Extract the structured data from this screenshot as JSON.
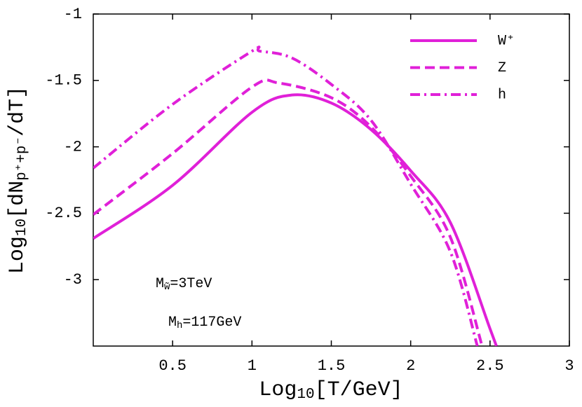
{
  "chart_data": {
    "type": "line",
    "xlabel_parts": [
      "Log",
      "10",
      "[T/GeV]"
    ],
    "ylabel_parts": [
      "Log",
      "10",
      "[dN",
      "p⁺+p⁻",
      "/dT]"
    ],
    "annotations": [
      {
        "parts": [
          "M",
          "w̃",
          "=3TeV"
        ]
      },
      {
        "parts": [
          "M",
          "h",
          "=117GeV"
        ]
      }
    ],
    "xlim": [
      0,
      3
    ],
    "ylim": [
      -3.5,
      -1
    ],
    "xticks": [
      0.5,
      1,
      1.5,
      2,
      2.5,
      3
    ],
    "yticks": [
      -1,
      -1.5,
      -2,
      -2.5,
      -3
    ],
    "legend": "upper right",
    "series": [
      {
        "name": "W⁺",
        "color": "#e020d8",
        "dash": "solid",
        "x": [
          0,
          0.5,
          1,
          1.25,
          1.5,
          1.75,
          2,
          2.25,
          2.5,
          2.54
        ],
        "values": [
          -2.69,
          -2.29,
          -1.74,
          -1.61,
          -1.67,
          -1.87,
          -2.18,
          -2.57,
          -3.37,
          -3.5
        ]
      },
      {
        "name": "Z",
        "color": "#e020d8",
        "dash": "dashed",
        "x": [
          0,
          0.5,
          1,
          1.17,
          1.5,
          1.75,
          2,
          2.25,
          2.45
        ],
        "values": [
          -2.51,
          -2.05,
          -1.55,
          -1.52,
          -1.63,
          -1.85,
          -2.22,
          -2.68,
          -3.5
        ]
      },
      {
        "name": "h",
        "color": "#e020d8",
        "dash": "dashdot",
        "x": [
          0,
          0.5,
          1,
          1.05,
          1.25,
          1.5,
          1.75,
          2,
          2.25,
          2.42
        ],
        "values": [
          -2.16,
          -1.68,
          -1.28,
          -1.28,
          -1.33,
          -1.53,
          -1.8,
          -2.28,
          -2.79,
          -3.5
        ]
      }
    ]
  }
}
